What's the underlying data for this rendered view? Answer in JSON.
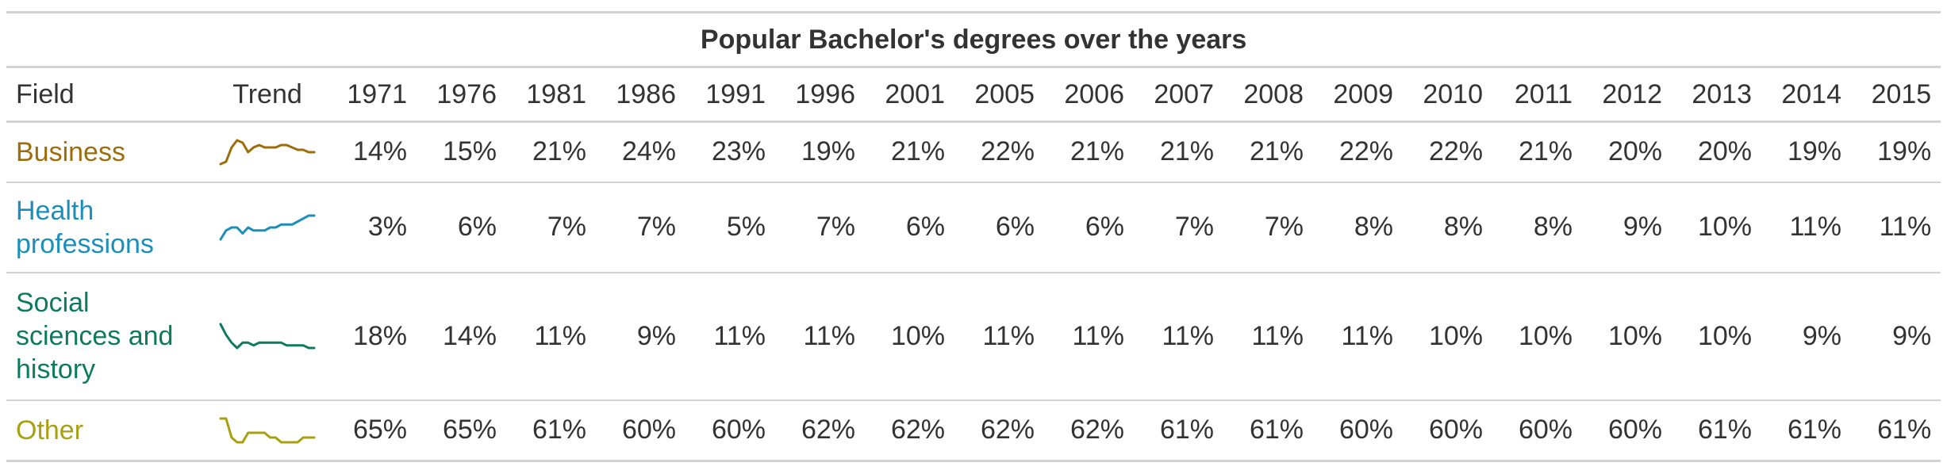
{
  "chart_data": {
    "type": "table",
    "title": "Popular Bachelor's degrees over the years",
    "columns": {
      "field": "Field",
      "trend": "Trend",
      "years": [
        "1971",
        "1976",
        "1981",
        "1986",
        "1991",
        "1996",
        "2001",
        "2005",
        "2006",
        "2007",
        "2008",
        "2009",
        "2010",
        "2011",
        "2012",
        "2013",
        "2014",
        "2015"
      ]
    },
    "rows": [
      {
        "field": "Business",
        "color": "#9E6D0B",
        "values": [
          14,
          15,
          21,
          24,
          23,
          19,
          21,
          22,
          21,
          21,
          21,
          22,
          22,
          21,
          20,
          20,
          19,
          19
        ],
        "labels": [
          "14%",
          "15%",
          "21%",
          "24%",
          "23%",
          "19%",
          "21%",
          "22%",
          "21%",
          "21%",
          "21%",
          "22%",
          "22%",
          "21%",
          "20%",
          "20%",
          "19%",
          "19%"
        ]
      },
      {
        "field": "Health professions",
        "color": "#1B8EBA",
        "values": [
          3,
          6,
          7,
          7,
          5,
          7,
          6,
          6,
          6,
          7,
          7,
          8,
          8,
          8,
          9,
          10,
          11,
          11
        ],
        "labels": [
          "3%",
          "6%",
          "7%",
          "7%",
          "5%",
          "7%",
          "6%",
          "6%",
          "6%",
          "7%",
          "7%",
          "8%",
          "8%",
          "8%",
          "9%",
          "10%",
          "11%",
          "11%"
        ]
      },
      {
        "field": "Social sciences and history",
        "color": "#0D7A5F",
        "values": [
          18,
          14,
          11,
          9,
          11,
          11,
          10,
          11,
          11,
          11,
          11,
          11,
          10,
          10,
          10,
          10,
          9,
          9
        ],
        "labels": [
          "18%",
          "14%",
          "11%",
          "9%",
          "11%",
          "11%",
          "10%",
          "11%",
          "11%",
          "11%",
          "11%",
          "11%",
          "10%",
          "10%",
          "10%",
          "10%",
          "9%",
          "9%"
        ]
      },
      {
        "field": "Other",
        "color": "#A8A010",
        "values": [
          65,
          65,
          61,
          60,
          60,
          62,
          62,
          62,
          62,
          61,
          61,
          60,
          60,
          60,
          60,
          61,
          61,
          61
        ],
        "labels": [
          "65%",
          "65%",
          "61%",
          "60%",
          "60%",
          "62%",
          "62%",
          "62%",
          "62%",
          "61%",
          "61%",
          "60%",
          "60%",
          "60%",
          "60%",
          "61%",
          "61%",
          "61%"
        ]
      }
    ]
  }
}
